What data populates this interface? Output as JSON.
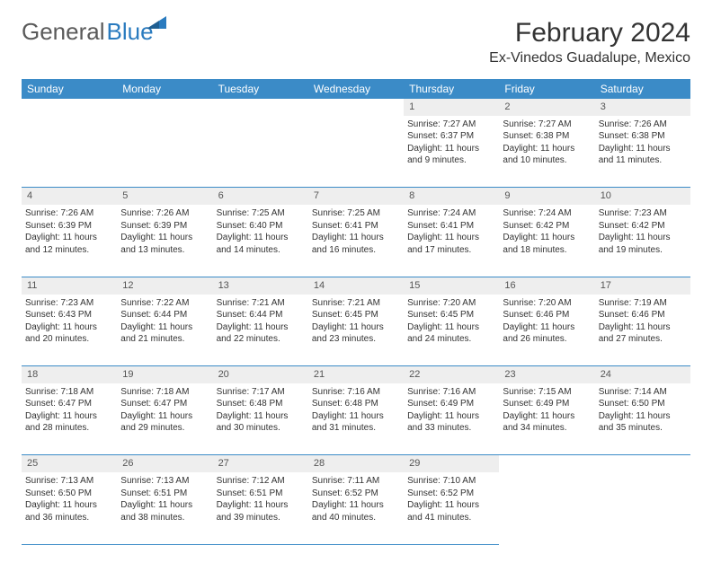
{
  "brand": {
    "part1": "General",
    "part2": "Blue"
  },
  "title": "February 2024",
  "location": "Ex-Vinedos Guadalupe, Mexico",
  "colors": {
    "header_bg": "#3b8bc7",
    "header_text": "#ffffff",
    "daynum_bg": "#eeeeee",
    "border": "#3b8bc7",
    "text": "#333333",
    "logo_gray": "#5a5a5a",
    "logo_blue": "#2a7bbf"
  },
  "weekdays": [
    "Sunday",
    "Monday",
    "Tuesday",
    "Wednesday",
    "Thursday",
    "Friday",
    "Saturday"
  ],
  "weeks": [
    {
      "nums": [
        "",
        "",
        "",
        "",
        "1",
        "2",
        "3"
      ],
      "cells": [
        null,
        null,
        null,
        null,
        {
          "sunrise": "Sunrise: 7:27 AM",
          "sunset": "Sunset: 6:37 PM",
          "daylight1": "Daylight: 11 hours",
          "daylight2": "and 9 minutes."
        },
        {
          "sunrise": "Sunrise: 7:27 AM",
          "sunset": "Sunset: 6:38 PM",
          "daylight1": "Daylight: 11 hours",
          "daylight2": "and 10 minutes."
        },
        {
          "sunrise": "Sunrise: 7:26 AM",
          "sunset": "Sunset: 6:38 PM",
          "daylight1": "Daylight: 11 hours",
          "daylight2": "and 11 minutes."
        }
      ]
    },
    {
      "nums": [
        "4",
        "5",
        "6",
        "7",
        "8",
        "9",
        "10"
      ],
      "cells": [
        {
          "sunrise": "Sunrise: 7:26 AM",
          "sunset": "Sunset: 6:39 PM",
          "daylight1": "Daylight: 11 hours",
          "daylight2": "and 12 minutes."
        },
        {
          "sunrise": "Sunrise: 7:26 AM",
          "sunset": "Sunset: 6:39 PM",
          "daylight1": "Daylight: 11 hours",
          "daylight2": "and 13 minutes."
        },
        {
          "sunrise": "Sunrise: 7:25 AM",
          "sunset": "Sunset: 6:40 PM",
          "daylight1": "Daylight: 11 hours",
          "daylight2": "and 14 minutes."
        },
        {
          "sunrise": "Sunrise: 7:25 AM",
          "sunset": "Sunset: 6:41 PM",
          "daylight1": "Daylight: 11 hours",
          "daylight2": "and 16 minutes."
        },
        {
          "sunrise": "Sunrise: 7:24 AM",
          "sunset": "Sunset: 6:41 PM",
          "daylight1": "Daylight: 11 hours",
          "daylight2": "and 17 minutes."
        },
        {
          "sunrise": "Sunrise: 7:24 AM",
          "sunset": "Sunset: 6:42 PM",
          "daylight1": "Daylight: 11 hours",
          "daylight2": "and 18 minutes."
        },
        {
          "sunrise": "Sunrise: 7:23 AM",
          "sunset": "Sunset: 6:42 PM",
          "daylight1": "Daylight: 11 hours",
          "daylight2": "and 19 minutes."
        }
      ]
    },
    {
      "nums": [
        "11",
        "12",
        "13",
        "14",
        "15",
        "16",
        "17"
      ],
      "cells": [
        {
          "sunrise": "Sunrise: 7:23 AM",
          "sunset": "Sunset: 6:43 PM",
          "daylight1": "Daylight: 11 hours",
          "daylight2": "and 20 minutes."
        },
        {
          "sunrise": "Sunrise: 7:22 AM",
          "sunset": "Sunset: 6:44 PM",
          "daylight1": "Daylight: 11 hours",
          "daylight2": "and 21 minutes."
        },
        {
          "sunrise": "Sunrise: 7:21 AM",
          "sunset": "Sunset: 6:44 PM",
          "daylight1": "Daylight: 11 hours",
          "daylight2": "and 22 minutes."
        },
        {
          "sunrise": "Sunrise: 7:21 AM",
          "sunset": "Sunset: 6:45 PM",
          "daylight1": "Daylight: 11 hours",
          "daylight2": "and 23 minutes."
        },
        {
          "sunrise": "Sunrise: 7:20 AM",
          "sunset": "Sunset: 6:45 PM",
          "daylight1": "Daylight: 11 hours",
          "daylight2": "and 24 minutes."
        },
        {
          "sunrise": "Sunrise: 7:20 AM",
          "sunset": "Sunset: 6:46 PM",
          "daylight1": "Daylight: 11 hours",
          "daylight2": "and 26 minutes."
        },
        {
          "sunrise": "Sunrise: 7:19 AM",
          "sunset": "Sunset: 6:46 PM",
          "daylight1": "Daylight: 11 hours",
          "daylight2": "and 27 minutes."
        }
      ]
    },
    {
      "nums": [
        "18",
        "19",
        "20",
        "21",
        "22",
        "23",
        "24"
      ],
      "cells": [
        {
          "sunrise": "Sunrise: 7:18 AM",
          "sunset": "Sunset: 6:47 PM",
          "daylight1": "Daylight: 11 hours",
          "daylight2": "and 28 minutes."
        },
        {
          "sunrise": "Sunrise: 7:18 AM",
          "sunset": "Sunset: 6:47 PM",
          "daylight1": "Daylight: 11 hours",
          "daylight2": "and 29 minutes."
        },
        {
          "sunrise": "Sunrise: 7:17 AM",
          "sunset": "Sunset: 6:48 PM",
          "daylight1": "Daylight: 11 hours",
          "daylight2": "and 30 minutes."
        },
        {
          "sunrise": "Sunrise: 7:16 AM",
          "sunset": "Sunset: 6:48 PM",
          "daylight1": "Daylight: 11 hours",
          "daylight2": "and 31 minutes."
        },
        {
          "sunrise": "Sunrise: 7:16 AM",
          "sunset": "Sunset: 6:49 PM",
          "daylight1": "Daylight: 11 hours",
          "daylight2": "and 33 minutes."
        },
        {
          "sunrise": "Sunrise: 7:15 AM",
          "sunset": "Sunset: 6:49 PM",
          "daylight1": "Daylight: 11 hours",
          "daylight2": "and 34 minutes."
        },
        {
          "sunrise": "Sunrise: 7:14 AM",
          "sunset": "Sunset: 6:50 PM",
          "daylight1": "Daylight: 11 hours",
          "daylight2": "and 35 minutes."
        }
      ]
    },
    {
      "nums": [
        "25",
        "26",
        "27",
        "28",
        "29",
        "",
        ""
      ],
      "cells": [
        {
          "sunrise": "Sunrise: 7:13 AM",
          "sunset": "Sunset: 6:50 PM",
          "daylight1": "Daylight: 11 hours",
          "daylight2": "and 36 minutes."
        },
        {
          "sunrise": "Sunrise: 7:13 AM",
          "sunset": "Sunset: 6:51 PM",
          "daylight1": "Daylight: 11 hours",
          "daylight2": "and 38 minutes."
        },
        {
          "sunrise": "Sunrise: 7:12 AM",
          "sunset": "Sunset: 6:51 PM",
          "daylight1": "Daylight: 11 hours",
          "daylight2": "and 39 minutes."
        },
        {
          "sunrise": "Sunrise: 7:11 AM",
          "sunset": "Sunset: 6:52 PM",
          "daylight1": "Daylight: 11 hours",
          "daylight2": "and 40 minutes."
        },
        {
          "sunrise": "Sunrise: 7:10 AM",
          "sunset": "Sunset: 6:52 PM",
          "daylight1": "Daylight: 11 hours",
          "daylight2": "and 41 minutes."
        },
        null,
        null
      ]
    }
  ]
}
